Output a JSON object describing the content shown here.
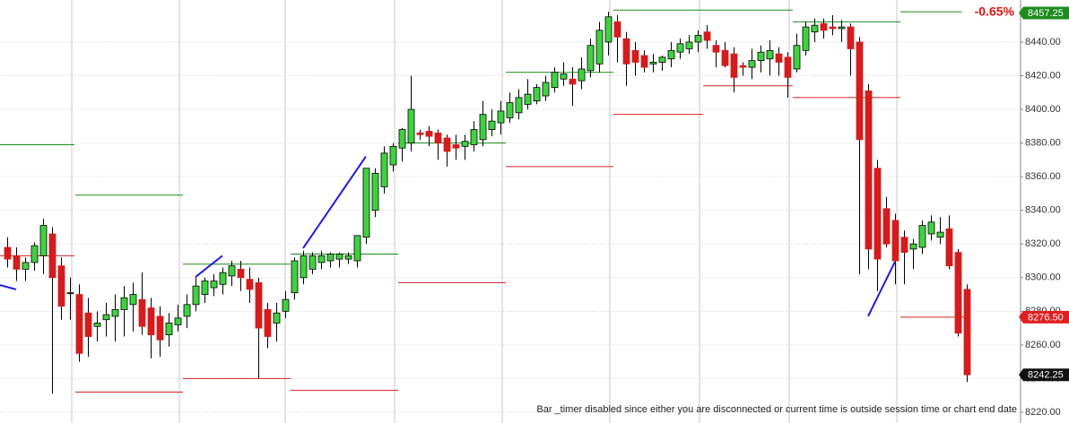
{
  "chart_data": {
    "type": "candlestick",
    "up_color": "#3fd23f",
    "down_color": "#d41c1c",
    "open": [
      8318,
      8313,
      8305,
      8309,
      8313,
      8326,
      8307,
      8291,
      8290,
      8279,
      8271,
      8275,
      8277,
      8281,
      8284,
      8287,
      8282,
      8277,
      8266,
      8272,
      8277,
      8284,
      8290,
      8294,
      8296,
      8301,
      8305,
      8299,
      8297,
      8281,
      8273,
      8280,
      8291,
      8300,
      8305,
      8309,
      8310,
      8311,
      8311,
      8310,
      8324,
      8340,
      8354,
      8367,
      8377,
      8380,
      8386,
      8387,
      8386,
      8383,
      8379,
      8378,
      8379,
      8382,
      8388,
      8392,
      8395,
      8398,
      8403,
      8405,
      8408,
      8413,
      8418,
      8418,
      8417,
      8423,
      8427,
      8440,
      8452,
      8442,
      8435,
      8432,
      8427,
      8428,
      8430,
      8434,
      8436,
      8440,
      8446,
      8438,
      8435,
      8433,
      8426,
      8425,
      8429,
      8430,
      8433,
      8431,
      8424,
      8435,
      8446,
      8451,
      8449,
      8448,
      8449,
      8440,
      8411,
      8365,
      8341,
      8334,
      8324,
      8317,
      8318,
      8326,
      8324,
      8329,
      8315,
      8293
    ],
    "high": [
      8324,
      8318,
      8312,
      8321,
      8335,
      8330,
      8312,
      8300,
      8296,
      8288,
      8280,
      8285,
      8290,
      8295,
      8297,
      8303,
      8288,
      8283,
      8279,
      8284,
      8290,
      8300,
      8300,
      8302,
      8306,
      8310,
      8310,
      8306,
      8300,
      8285,
      8285,
      8292,
      8312,
      8316,
      8315,
      8316,
      8315,
      8315,
      8315,
      8325,
      8365,
      8365,
      8378,
      8380,
      8389,
      8420,
      8388,
      8390,
      8388,
      8385,
      8385,
      8385,
      8393,
      8405,
      8400,
      8405,
      8410,
      8412,
      8418,
      8415,
      8420,
      8425,
      8428,
      8425,
      8431,
      8442,
      8452,
      8458,
      8456,
      8446,
      8440,
      8435,
      8433,
      8432,
      8440,
      8442,
      8444,
      8447,
      8450,
      8441,
      8440,
      8437,
      8428,
      8436,
      8438,
      8441,
      8437,
      8434,
      8445,
      8452,
      8454,
      8454,
      8456,
      8453,
      8451,
      8443,
      8415,
      8370,
      8348,
      8338,
      8328,
      8323,
      8334,
      8337,
      8336,
      8337,
      8317,
      8296
    ],
    "low": [
      8306,
      8298,
      8298,
      8304,
      8302,
      8231,
      8275,
      8275,
      8250,
      8253,
      8262,
      8265,
      8262,
      8265,
      8268,
      8266,
      8252,
      8253,
      8259,
      8268,
      8270,
      8280,
      8285,
      8289,
      8290,
      8295,
      8292,
      8285,
      8240,
      8258,
      8262,
      8276,
      8287,
      8296,
      8302,
      8305,
      8306,
      8306,
      8308,
      8306,
      8320,
      8336,
      8350,
      8363,
      8369,
      8375,
      8382,
      8378,
      8370,
      8366,
      8370,
      8370,
      8375,
      8378,
      8384,
      8385,
      8392,
      8394,
      8400,
      8403,
      8405,
      8410,
      8414,
      8402,
      8412,
      8419,
      8422,
      8432,
      8428,
      8414,
      8420,
      8422,
      8422,
      8423,
      8425,
      8430,
      8433,
      8434,
      8436,
      8425,
      8425,
      8410,
      8420,
      8418,
      8422,
      8420,
      8420,
      8407,
      8422,
      8432,
      8440,
      8442,
      8444,
      8440,
      8420,
      8302,
      8305,
      8292,
      8318,
      8296,
      8296,
      8305,
      8314,
      8322,
      8320,
      8305,
      8265,
      8238
    ],
    "close": [
      8311,
      8305,
      8309,
      8319,
      8331,
      8300,
      8283,
      8291,
      8255,
      8265,
      8273,
      8278,
      8281,
      8288,
      8290,
      8271,
      8266,
      8263,
      8273,
      8276,
      8284,
      8295,
      8298,
      8298,
      8303,
      8307,
      8300,
      8293,
      8270,
      8265,
      8279,
      8287,
      8310,
      8313,
      8313,
      8313,
      8314,
      8314,
      8313,
      8325,
      8365,
      8362,
      8374,
      8378,
      8388,
      8400,
      8385,
      8384,
      8380,
      8375,
      8377,
      8381,
      8388,
      8397,
      8393,
      8399,
      8404,
      8407,
      8409,
      8413,
      8416,
      8422,
      8421,
      8415,
      8424,
      8438,
      8447,
      8455,
      8443,
      8427,
      8428,
      8425,
      8428,
      8431,
      8435,
      8439,
      8440,
      8444,
      8441,
      8434,
      8426,
      8419,
      8425,
      8429,
      8434,
      8435,
      8428,
      8419,
      8438,
      8449,
      8450,
      8447,
      8448,
      8449,
      8436,
      8382,
      8317,
      8311,
      8320,
      8310,
      8315,
      8320,
      8331,
      8333,
      8327,
      8307,
      8267,
      8242.25
    ],
    "ylim": [
      8213.6,
      8465
    ],
    "yticks": [
      {
        "value": 8220,
        "label": "8220.00"
      },
      {
        "value": 8240,
        "label": "8240.00"
      },
      {
        "value": 8260,
        "label": "8260.00"
      },
      {
        "value": 8280,
        "label": "8280.00"
      },
      {
        "value": 8300,
        "label": "8300.00"
      },
      {
        "value": 8320,
        "label": "8320.00"
      },
      {
        "value": 8340,
        "label": "8340.00"
      },
      {
        "value": 8360,
        "label": "8360.00"
      },
      {
        "value": 8380,
        "label": "8380.00"
      },
      {
        "value": 8400,
        "label": "8400.00"
      },
      {
        "value": 8420,
        "label": "8420.00"
      },
      {
        "value": 8440,
        "label": "8440.00"
      }
    ],
    "grid": true,
    "levels": [
      {
        "from": -0.85,
        "to": 7.45,
        "value": 8379,
        "color": "#1a8a1a"
      },
      {
        "from": -0.85,
        "to": 7.45,
        "value": 8313,
        "color": "#d42020"
      },
      {
        "from": 7.55,
        "to": 19.55,
        "value": 8349,
        "color": "#1a8a1a"
      },
      {
        "from": 7.55,
        "to": 19.55,
        "value": 8232,
        "color": "#d42020"
      },
      {
        "from": 19.55,
        "to": 31.55,
        "value": 8308,
        "color": "#1a8a1a"
      },
      {
        "from": 19.55,
        "to": 31.55,
        "value": 8240,
        "color": "#d42020"
      },
      {
        "from": 31.55,
        "to": 43.55,
        "value": 8314,
        "color": "#1a8a1a"
      },
      {
        "from": 31.55,
        "to": 43.55,
        "value": 8233,
        "color": "#d42020"
      },
      {
        "from": 43.55,
        "to": 55.55,
        "value": 8380,
        "color": "#1a8a1a"
      },
      {
        "from": 43.55,
        "to": 55.55,
        "value": 8297,
        "color": "#d42020"
      },
      {
        "from": 55.55,
        "to": 67.55,
        "value": 8422,
        "color": "#1a8a1a"
      },
      {
        "from": 55.55,
        "to": 67.55,
        "value": 8366,
        "color": "#d42020"
      },
      {
        "from": 67.55,
        "to": 87.55,
        "value": 8459,
        "color": "#1a8a1a"
      },
      {
        "from": 67.55,
        "to": 77.55,
        "value": 8397,
        "color": "#d42020"
      },
      {
        "from": 77.55,
        "to": 87.55,
        "value": 8414,
        "color": "#d42020"
      },
      {
        "from": 87.55,
        "to": 99.55,
        "value": 8452,
        "color": "#1a8a1a"
      },
      {
        "from": 87.55,
        "to": 99.55,
        "value": 8407,
        "color": "#d42020"
      },
      {
        "from": 99.55,
        "to": 106.4,
        "value": 8458,
        "color": "#1a8a1a"
      },
      {
        "from": 99.55,
        "to": 106.7,
        "value": 8276.5,
        "color": "#d42020"
      }
    ],
    "trend_lines": [
      {
        "x": [
          -0.85,
          0.95
        ],
        "y": [
          8295.6,
          8293
        ],
        "color": "#1c1ce0"
      },
      {
        "x": [
          20.95,
          23.95
        ],
        "y": [
          8300.4,
          8313
        ],
        "color": "#1c1ce0"
      },
      {
        "x": [
          32.95,
          39.95
        ],
        "y": [
          8317.5,
          8372
        ],
        "color": "#1c1ce0"
      },
      {
        "x": [
          95.95,
          98.95
        ],
        "y": [
          8277,
          8309.5
        ],
        "color": "#1c1ce0"
      }
    ],
    "price_markers": [
      {
        "value": 8457.25,
        "color": "#1e8c1e"
      },
      {
        "value": 8276.5,
        "label": "8276.50",
        "color": "#e02020"
      },
      {
        "value": 8242.25,
        "color": "#111111"
      }
    ],
    "change": "-0.65%",
    "status_message": "Bar _timer disabled since either you are disconnected or current time is outside session time or chart end date"
  }
}
